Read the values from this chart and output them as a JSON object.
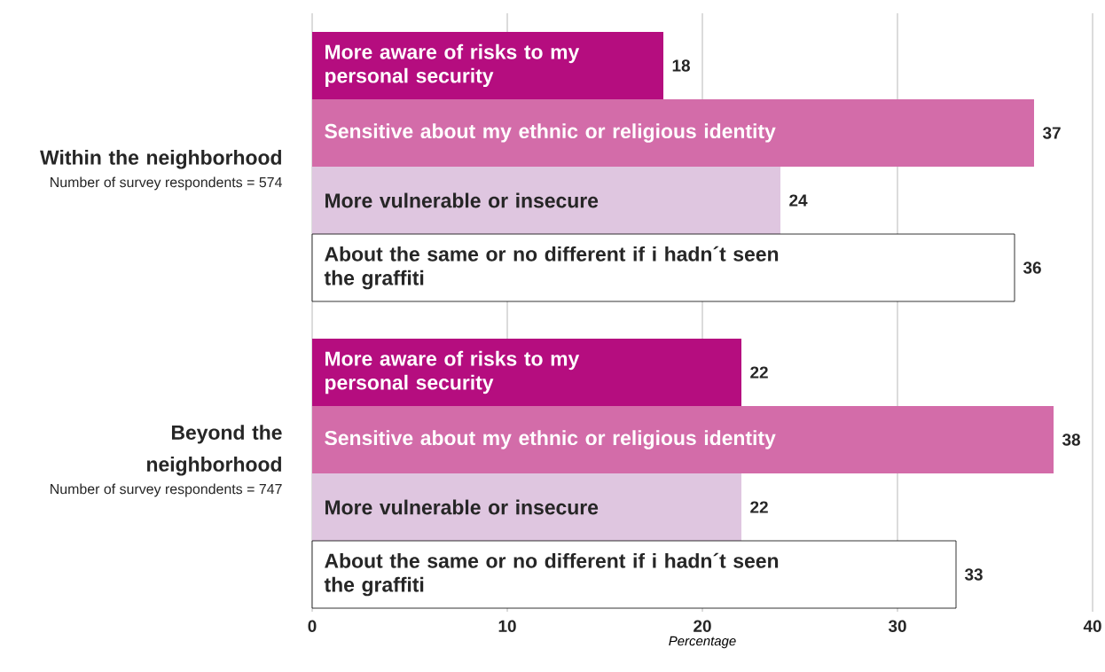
{
  "chart_data": {
    "type": "bar",
    "orientation": "horizontal",
    "categories": [
      "Within the neighborhood",
      "Beyond the neighborhood"
    ],
    "series": [
      {
        "name": "More aware of risks to my personal security",
        "color": "#b50d7f",
        "values": [
          18,
          22
        ]
      },
      {
        "name": "Sensitive about my ethnic or religious identity",
        "color": "#d36ca9",
        "values": [
          37,
          38
        ]
      },
      {
        "name": "More vulnerable or insecure",
        "color": "#dfc6e0",
        "values": [
          24,
          22
        ]
      },
      {
        "name": "About the same or no different if i hadn´t seen the graffiti",
        "color": "#ffffff",
        "values": [
          36,
          33
        ]
      }
    ],
    "annotations": [
      "Number of survey respondents = 574",
      "Number of survey respondents = 747"
    ],
    "xlabel": "Percentage",
    "xlim": [
      0,
      40
    ],
    "xticks": [
      0,
      10,
      20,
      30,
      40
    ],
    "grid": "x",
    "data_labels": true
  }
}
